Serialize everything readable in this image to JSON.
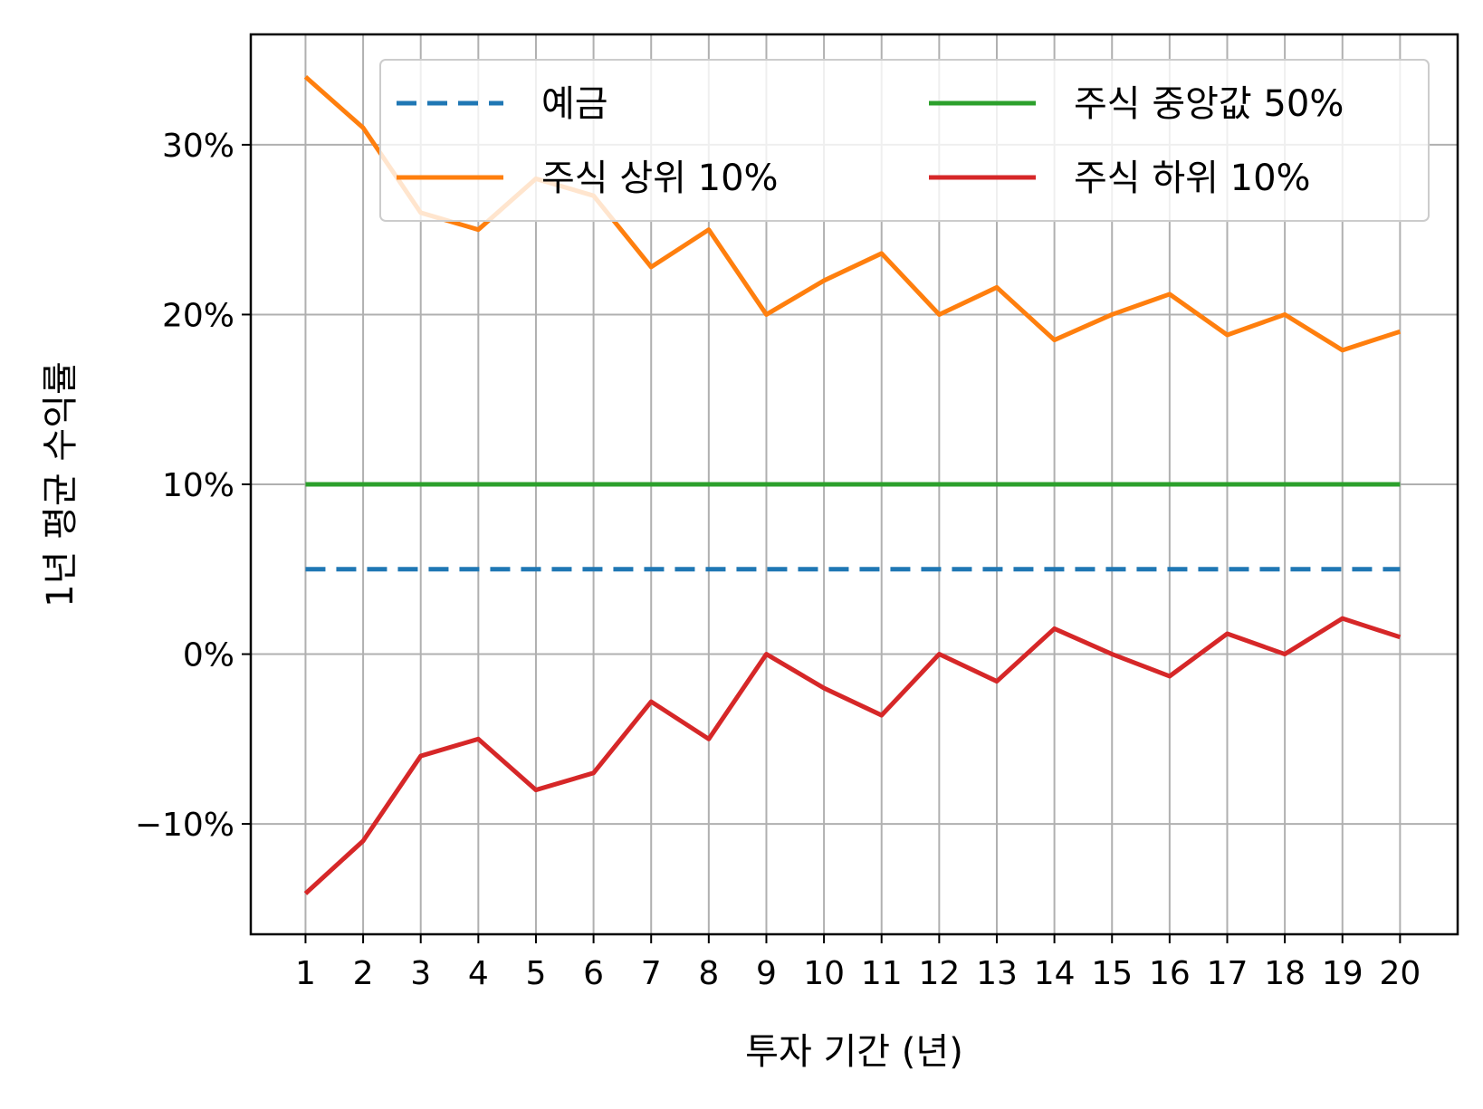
{
  "chart_data": {
    "type": "line",
    "title": "",
    "xlabel": "투자 기간 (년)",
    "ylabel": "1년 평균 수익률",
    "x": [
      1,
      2,
      3,
      4,
      5,
      6,
      7,
      8,
      9,
      10,
      11,
      12,
      13,
      14,
      15,
      16,
      17,
      18,
      19,
      20
    ],
    "x_tick_labels": [
      "1",
      "2",
      "3",
      "4",
      "5",
      "6",
      "7",
      "8",
      "9",
      "10",
      "11",
      "12",
      "13",
      "14",
      "15",
      "16",
      "17",
      "18",
      "19",
      "20"
    ],
    "xlim": [
      0.05,
      21.0
    ],
    "ylim": [
      -16.5,
      36.5
    ],
    "y_ticks": [
      -10,
      0,
      10,
      20,
      30
    ],
    "y_tick_labels": [
      "−10%",
      "0%",
      "10%",
      "20%",
      "30%"
    ],
    "grid": true,
    "legend_position": "top-right",
    "legend_columns": 2,
    "series": [
      {
        "name": "예금",
        "color": "#1f77b4",
        "style": "dashed",
        "values": [
          5,
          5,
          5,
          5,
          5,
          5,
          5,
          5,
          5,
          5,
          5,
          5,
          5,
          5,
          5,
          5,
          5,
          5,
          5,
          5
        ]
      },
      {
        "name": "주식 상위 10%",
        "color": "#ff7f0e",
        "style": "solid",
        "values": [
          34.0,
          31.0,
          26.0,
          25.0,
          28.0,
          27.0,
          22.8,
          25.0,
          20.0,
          22.0,
          23.6,
          20.0,
          21.6,
          18.5,
          20.0,
          21.2,
          18.8,
          20.0,
          17.9,
          19.0
        ]
      },
      {
        "name": "주식 중앙값 50%",
        "color": "#2ca02c",
        "style": "solid",
        "values": [
          10,
          10,
          10,
          10,
          10,
          10,
          10,
          10,
          10,
          10,
          10,
          10,
          10,
          10,
          10,
          10,
          10,
          10,
          10,
          10
        ]
      },
      {
        "name": "주식 하위 10%",
        "color": "#d62728",
        "style": "solid",
        "values": [
          -14.1,
          -11.0,
          -6.0,
          -5.0,
          -8.0,
          -7.0,
          -2.8,
          -5.0,
          0.0,
          -2.0,
          -3.6,
          0.0,
          -1.6,
          1.5,
          0.0,
          -1.3,
          1.2,
          0.0,
          2.1,
          1.0
        ]
      }
    ]
  }
}
